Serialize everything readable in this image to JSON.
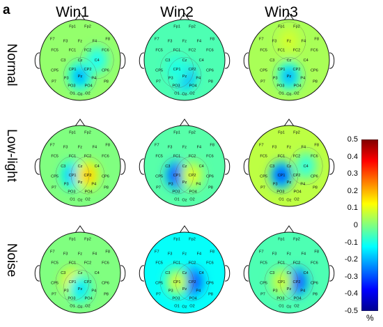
{
  "panel_label": "a",
  "columns": [
    "Win1",
    "Win2",
    "Win3"
  ],
  "rows": [
    "Normal",
    "Low-light",
    "Noise"
  ],
  "colorbar": {
    "ticks": [
      "0.5",
      "0.4",
      "0.3",
      "0.2",
      "0.1",
      "0",
      "-0.1",
      "-0.2",
      "-0.3",
      "-0.4",
      "-0.5"
    ],
    "unit": "%",
    "range": [
      -0.5,
      0.5
    ],
    "colormap": [
      "#7f0000",
      "#ff0000",
      "#ff8000",
      "#ffff00",
      "#80ff80",
      "#00ffff",
      "#0080ff",
      "#0000ff",
      "#00008f"
    ]
  },
  "electrodes": [
    "Fp1",
    "Fp2",
    "F7",
    "F3",
    "Fz",
    "F4",
    "F8",
    "FC5",
    "FC1",
    "FC2",
    "FC6",
    "C3",
    "Cz",
    "C4",
    "CP5",
    "CP1",
    "CP2",
    "CP6",
    "P3",
    "Pz",
    "P4",
    "P7",
    "P8",
    "PO3",
    "PO4",
    "O1",
    "Oz",
    "O2"
  ],
  "maps": [
    {
      "row": "Normal",
      "col": "Win1",
      "base": 0.02,
      "blobs": [
        {
          "at": "Pz",
          "amp": -0.22
        },
        {
          "at": "C4",
          "amp": -0.12
        }
      ]
    },
    {
      "row": "Normal",
      "col": "Win2",
      "base": -0.05,
      "blobs": [
        {
          "at": "Pz",
          "amp": -0.25
        },
        {
          "at": "CP1",
          "amp": -0.1
        }
      ]
    },
    {
      "row": "Normal",
      "col": "Win3",
      "base": 0.04,
      "blobs": [
        {
          "at": "Pz",
          "amp": -0.22
        },
        {
          "at": "Fz",
          "amp": 0.08
        }
      ]
    },
    {
      "row": "Low-light",
      "col": "Win1",
      "base": 0.0,
      "blobs": [
        {
          "at": "CP1",
          "amp": -0.2
        },
        {
          "at": "CP2",
          "amp": 0.18
        }
      ]
    },
    {
      "row": "Low-light",
      "col": "Win2",
      "base": -0.04,
      "blobs": [
        {
          "at": "CP1",
          "amp": -0.35
        },
        {
          "at": "CP2",
          "amp": 0.1
        }
      ]
    },
    {
      "row": "Low-light",
      "col": "Win3",
      "base": 0.06,
      "blobs": [
        {
          "at": "CP1",
          "amp": -0.38
        },
        {
          "at": "C4",
          "amp": -0.1
        }
      ]
    },
    {
      "row": "Noise",
      "col": "Win1",
      "base": 0.0,
      "blobs": [
        {
          "at": "CP1",
          "amp": 0.15
        },
        {
          "at": "Pz",
          "amp": -0.15
        }
      ]
    },
    {
      "row": "Noise",
      "col": "Win2",
      "base": -0.12,
      "blobs": [
        {
          "at": "CP2",
          "amp": -0.32
        },
        {
          "at": "CP1",
          "amp": 0.1
        }
      ]
    },
    {
      "row": "Noise",
      "col": "Win3",
      "base": -0.05,
      "blobs": [
        {
          "at": "CP2",
          "amp": -0.35
        },
        {
          "at": "CP1",
          "amp": 0.08
        }
      ]
    }
  ]
}
